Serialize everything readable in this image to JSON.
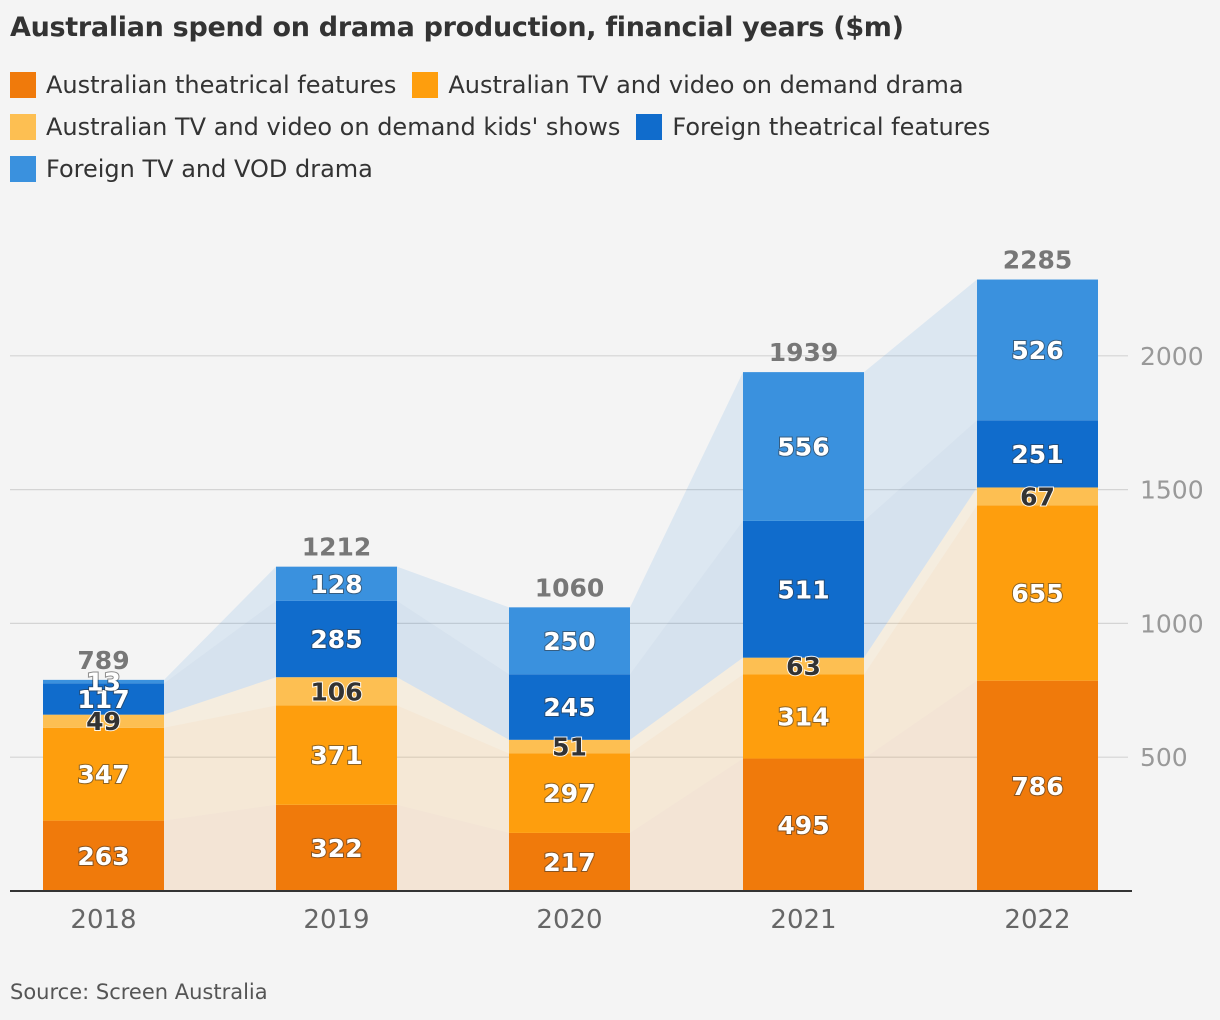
{
  "title": "Australian spend on drama production, financial years ($m)",
  "source": "Source: Screen Australia",
  "chart_data": {
    "type": "bar",
    "stacked": true,
    "title": "Australian spend on drama production, financial years ($m)",
    "categories": [
      "2018",
      "2019",
      "2020",
      "2021",
      "2022"
    ],
    "series": [
      {
        "name": "Australian theatrical features",
        "color": "#f07a0b",
        "values": [
          263,
          322,
          217,
          495,
          786
        ]
      },
      {
        "name": "Australian TV and video on demand drama",
        "color": "#fe9e0d",
        "values": [
          347,
          371,
          297,
          314,
          655
        ]
      },
      {
        "name": "Australian TV and video on demand kids' shows",
        "color": "#fdbf52",
        "values": [
          49,
          106,
          51,
          63,
          67
        ]
      },
      {
        "name": "Foreign theatrical features",
        "color": "#106ccc",
        "values": [
          117,
          285,
          245,
          511,
          251
        ]
      },
      {
        "name": "Foreign TV and VOD drama",
        "color": "#3a91de",
        "values": [
          13,
          128,
          250,
          556,
          526
        ]
      }
    ],
    "totals": [
      789,
      1212,
      1060,
      1939,
      2285
    ],
    "y_ticks": [
      "500",
      "1000",
      "1500",
      "2000"
    ],
    "y_tick_values": [
      500,
      1000,
      1500,
      2000
    ],
    "ylim": [
      0,
      2300
    ],
    "y_axis_side": "right",
    "grid": true,
    "legend": "top"
  }
}
